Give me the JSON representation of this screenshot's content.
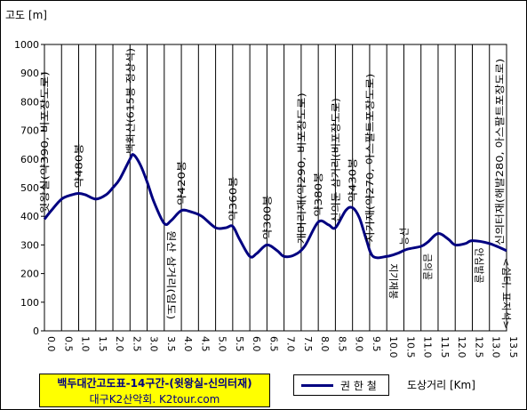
{
  "chart_data": {
    "type": "line",
    "ylabel": "고도 [m]",
    "xlabel": "도상거리 [Km]",
    "xlim": [
      0,
      13.5
    ],
    "ylim": [
      0,
      1000
    ],
    "x_ticks": [
      "0.0",
      "0.5",
      "1.0",
      "1.5",
      "2.0",
      "2.5",
      "3.0",
      "3.5",
      "4.0",
      "4.5",
      "5.0",
      "5.5",
      "6.0",
      "6.5",
      "7.0",
      "7.5",
      "8.0",
      "8.5",
      "9.0",
      "9.5",
      "10.0",
      "10.5",
      "11.0",
      "11.5",
      "12.0",
      "12.5",
      "13.0",
      "13.5"
    ],
    "y_ticks": [
      "0",
      "100",
      "200",
      "300",
      "400",
      "500",
      "600",
      "700",
      "800",
      "900",
      "1000"
    ],
    "grid": "vertical",
    "series": [
      {
        "name": "권 한 철",
        "color": "#000080",
        "x": [
          0,
          0.2,
          0.5,
          0.8,
          1.0,
          1.2,
          1.5,
          1.8,
          2.0,
          2.2,
          2.5,
          2.6,
          2.8,
          3.0,
          3.2,
          3.5,
          3.7,
          4.0,
          4.3,
          4.6,
          5.0,
          5.3,
          5.5,
          5.7,
          6.0,
          6.2,
          6.5,
          6.8,
          7.0,
          7.3,
          7.6,
          8.0,
          8.3,
          8.5,
          8.8,
          9.0,
          9.2,
          9.4,
          9.6,
          10.0,
          10.3,
          10.6,
          11.0,
          11.2,
          11.5,
          11.8,
          12.0,
          12.3,
          12.5,
          13.0,
          13.5
        ],
        "y": [
          390,
          420,
          460,
          475,
          480,
          475,
          460,
          475,
          500,
          530,
          600,
          615,
          580,
          520,
          450,
          375,
          385,
          420,
          415,
          400,
          360,
          360,
          365,
          320,
          260,
          270,
          300,
          280,
          260,
          265,
          295,
          380,
          370,
          360,
          420,
          430,
          395,
          320,
          260,
          260,
          270,
          285,
          295,
          310,
          340,
          320,
          300,
          305,
          315,
          305,
          280
        ]
      }
    ],
    "annotations_above": [
      {
        "x": 0.0,
        "text": "윗왕실(약390, 비포장도로)"
      },
      {
        "x": 1.0,
        "text": "약480봉"
      },
      {
        "x": 2.5,
        "text": "백화산(615봉 정상석)"
      },
      {
        "x": 4.0,
        "text": "약420봉"
      },
      {
        "x": 5.5,
        "text": "약360봉"
      },
      {
        "x": 6.5,
        "text": "약300봉"
      },
      {
        "x": 7.5,
        "text": "개머리재(약290, 비포장도로)"
      },
      {
        "x": 8.0,
        "text": "약380봉"
      },
      {
        "x": 8.5,
        "text": "신의둔 삼거리(비포장도로)"
      },
      {
        "x": 9.0,
        "text": "약430봉"
      },
      {
        "x": 9.5,
        "text": "지기재(약270, 아스팔트포장도로)"
      },
      {
        "x": 10.5,
        "text": "능선"
      },
      {
        "x": 13.5,
        "text": "신의터재(해발280, 아스팔트포장도로)"
      }
    ],
    "annotations_below": [
      {
        "x": 3.5,
        "text": "원산 삼거리(임도)"
      },
      {
        "x": 10.0,
        "text": "지기재봉"
      },
      {
        "x": 11.0,
        "text": "금의골"
      },
      {
        "x": 12.5,
        "text": "안심발골"
      },
      {
        "x": 13.5,
        "text": "<쉼터, 표지석>"
      }
    ]
  },
  "title_box": {
    "line1": "백두대간고도표-14구간-(윗왕실-신의터재)",
    "line2": "대구K2산악회. K2tour.com"
  },
  "legend": {
    "label": "권 한 철",
    "color": "#000080"
  }
}
